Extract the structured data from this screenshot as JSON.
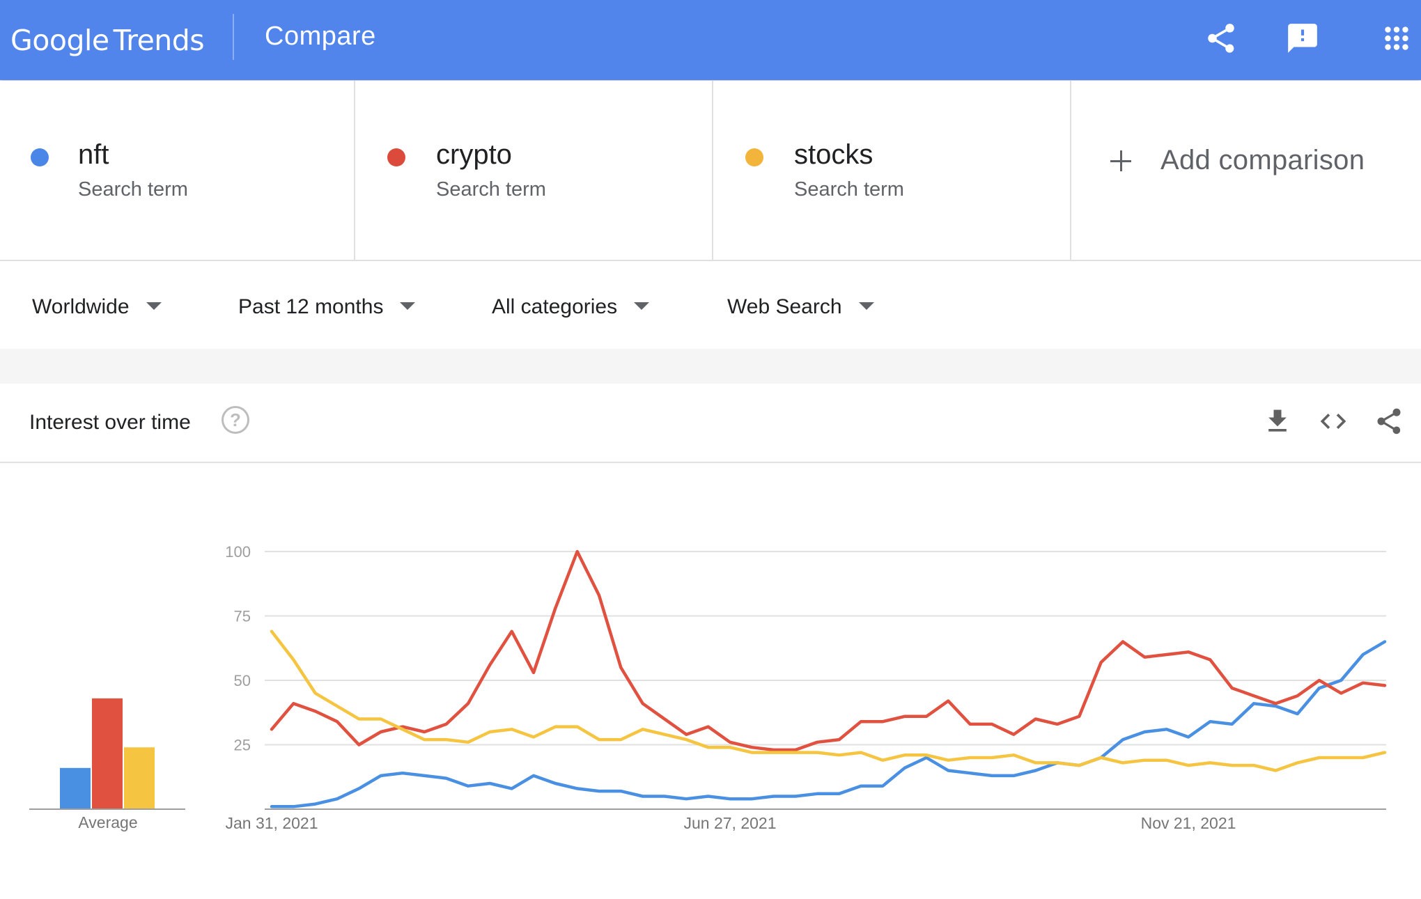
{
  "header": {
    "logo_google": "Google",
    "logo_trends": "Trends",
    "page_title": "Compare",
    "icons": [
      "share-icon",
      "feedback-icon",
      "apps-icon"
    ]
  },
  "terms": [
    {
      "name": "nft",
      "type": "Search term",
      "color": "#4285f4"
    },
    {
      "name": "crypto",
      "type": "Search term",
      "color": "#db4437"
    },
    {
      "name": "stocks",
      "type": "Search term",
      "color": "#f4b400"
    }
  ],
  "add_comparison": "Add comparison",
  "filters": {
    "region": "Worldwide",
    "time": "Past 12 months",
    "category": "All categories",
    "search_type": "Web Search"
  },
  "card": {
    "title": "Interest over time",
    "help": "?",
    "icons": [
      "download-icon",
      "embed-icon",
      "share-icon"
    ]
  },
  "average_label": "Average",
  "chart_data": {
    "type": "line",
    "title": "Interest over time",
    "yticks": [
      25,
      50,
      75,
      100
    ],
    "ylim": [
      0,
      100
    ],
    "x_tick_labels": [
      {
        "label": "Jan 31, 2021",
        "index": 0
      },
      {
        "label": "Jun 27, 2021",
        "index": 21
      },
      {
        "label": "Nov 21, 2021",
        "index": 42
      }
    ],
    "grid": true,
    "series": [
      {
        "name": "nft",
        "color": "#4a90e2",
        "values": [
          1,
          1,
          2,
          4,
          8,
          13,
          14,
          13,
          12,
          9,
          10,
          8,
          13,
          10,
          8,
          7,
          7,
          5,
          5,
          4,
          5,
          4,
          4,
          5,
          5,
          6,
          6,
          9,
          9,
          16,
          20,
          15,
          14,
          13,
          13,
          15,
          18,
          17,
          20,
          27,
          30,
          31,
          28,
          34,
          33,
          41,
          40,
          37,
          47,
          50,
          60,
          65
        ],
        "average": 16
      },
      {
        "name": "crypto",
        "color": "#e05140",
        "values": [
          31,
          41,
          38,
          34,
          25,
          30,
          32,
          30,
          33,
          41,
          56,
          69,
          53,
          78,
          100,
          83,
          55,
          41,
          35,
          29,
          32,
          26,
          24,
          23,
          23,
          26,
          27,
          34,
          34,
          36,
          36,
          42,
          33,
          33,
          29,
          35,
          33,
          36,
          57,
          65,
          59,
          60,
          61,
          58,
          47,
          44,
          41,
          44,
          50,
          45,
          49,
          48
        ],
        "average": 43
      },
      {
        "name": "stocks",
        "color": "#f5c542",
        "values": [
          69,
          58,
          45,
          40,
          35,
          35,
          31,
          27,
          27,
          26,
          30,
          31,
          28,
          32,
          32,
          27,
          27,
          31,
          29,
          27,
          24,
          24,
          22,
          22,
          22,
          22,
          21,
          22,
          19,
          21,
          21,
          19,
          20,
          20,
          21,
          18,
          18,
          17,
          20,
          18,
          19,
          19,
          17,
          18,
          17,
          17,
          15,
          18,
          20,
          20,
          20,
          22
        ],
        "average": 24
      }
    ]
  }
}
